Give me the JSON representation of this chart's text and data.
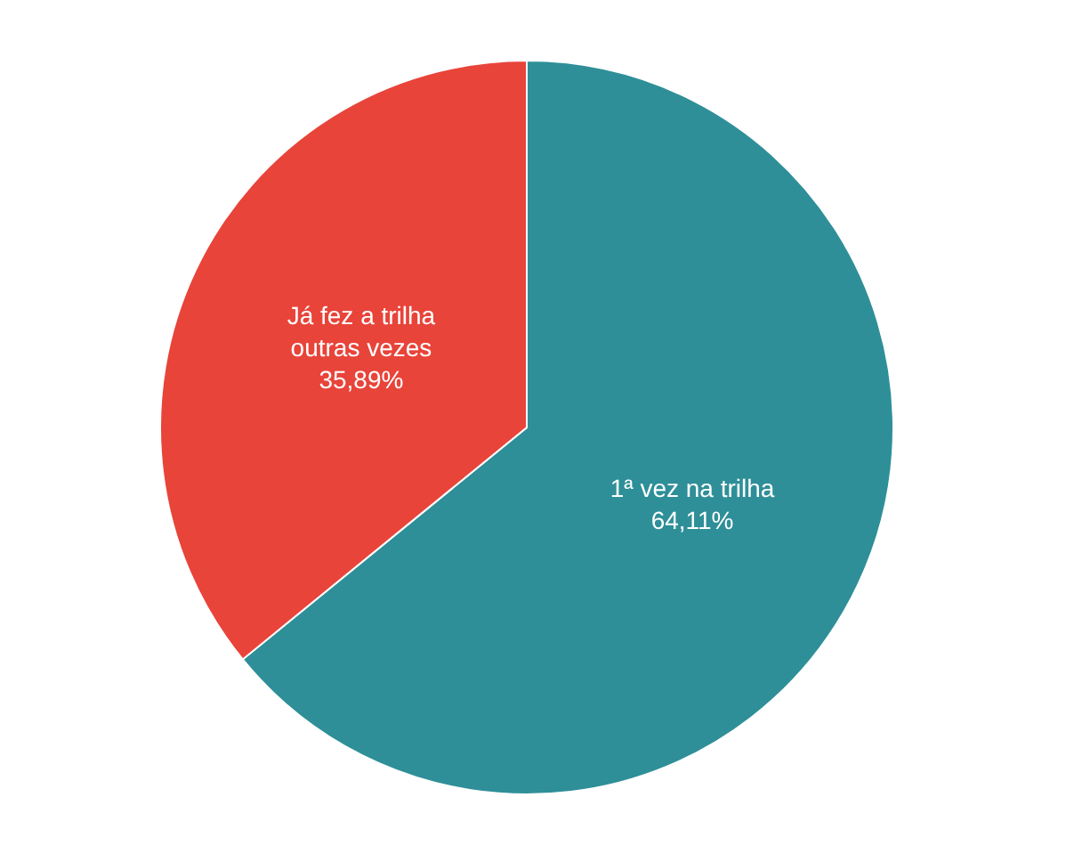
{
  "chart_data": {
    "type": "pie",
    "categories": [
      "1ª vez na trilha",
      "Já fez a trilha outras vezes"
    ],
    "values": [
      64.11,
      35.89
    ],
    "colors": [
      "#2e8f98",
      "#e8443a"
    ],
    "value_labels": [
      "64,11%",
      "35,89%"
    ]
  }
}
